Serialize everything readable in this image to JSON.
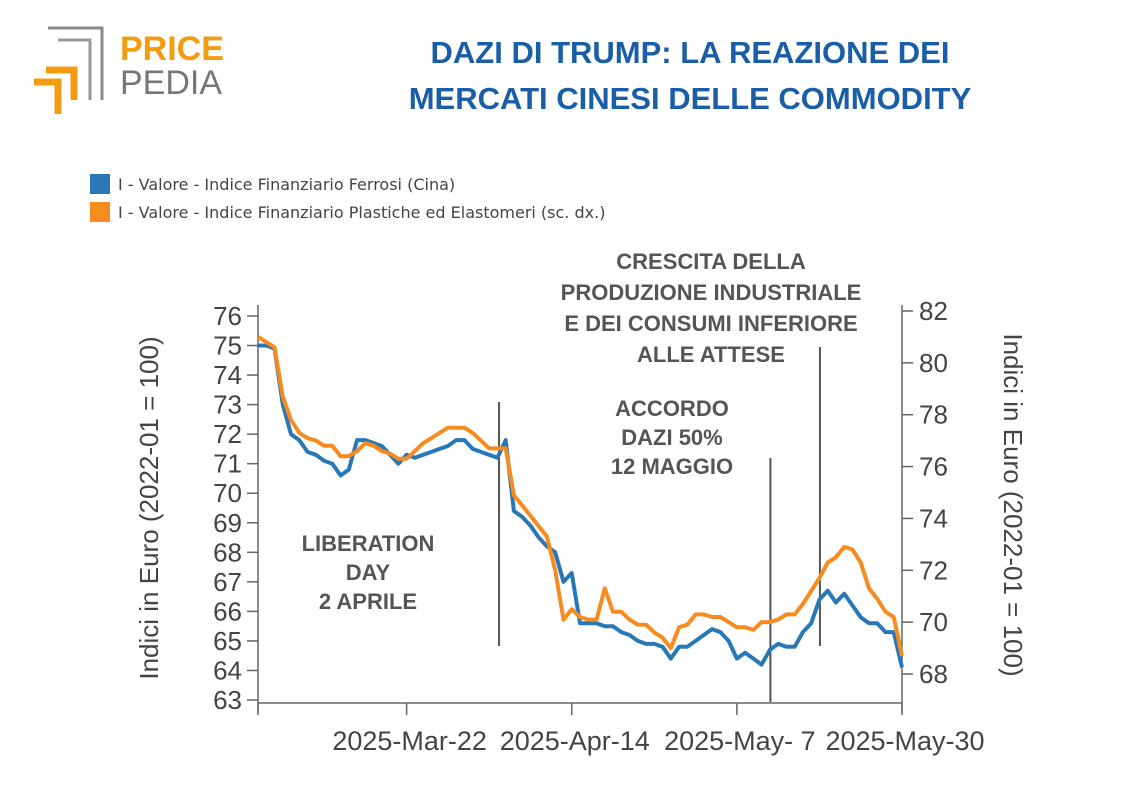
{
  "header": {
    "logo_word_top": "PRICE",
    "logo_word_bottom": "PEDIA",
    "title_line1": "DAZI DI TRUMP: LA REAZIONE DEI",
    "title_line2": "MERCATI CINESI DELLE COMMODITY"
  },
  "colors": {
    "blue_series": "#2878b8",
    "orange_series": "#f68c1f",
    "title": "#1a5ea8",
    "annotation": "#555555",
    "logo_orange": "#f39c12",
    "logo_gray": "#777777"
  },
  "chart_data": {
    "type": "line",
    "legend": [
      "I - Valore - Indice Finanziario Ferrosi (Cina)",
      "I - Valore - Indice Finanziario Plastiche ed Elastomeri (sc. dx.)"
    ],
    "ylabel_left": "Indici in Euro (2022-01 = 100)",
    "ylabel_right": "Indici in Euro (2022-01 = 100)",
    "ylim_left": [
      63,
      76
    ],
    "ylim_right": [
      67,
      82
    ],
    "yticks_left": [
      "63",
      "64",
      "65",
      "66",
      "67",
      "68",
      "69",
      "70",
      "71",
      "72",
      "73",
      "74",
      "75",
      "76"
    ],
    "yticks_right": [
      "68",
      "70",
      "72",
      "74",
      "76",
      "78",
      "80",
      "82"
    ],
    "xticks": [
      "2025-Mar-22",
      "2025-Apr-14",
      "2025-May- 7",
      "2025-May-30"
    ],
    "x_index_range": [
      0,
      78
    ],
    "xtick_index": [
      18,
      38,
      58,
      78
    ],
    "series": [
      {
        "name": "I - Valore - Indice Finanziario Ferrosi (Cina)",
        "axis": "left",
        "values": [
          75.0,
          75.0,
          74.9,
          73.0,
          72.0,
          71.8,
          71.4,
          71.3,
          71.1,
          71.0,
          70.6,
          70.8,
          71.8,
          71.8,
          71.7,
          71.6,
          71.3,
          71.0,
          71.3,
          71.2,
          71.3,
          71.4,
          71.5,
          71.6,
          71.8,
          71.8,
          71.5,
          71.4,
          71.3,
          71.2,
          71.8,
          69.4,
          69.2,
          68.9,
          68.5,
          68.2,
          68.0,
          67.0,
          67.3,
          65.6,
          65.6,
          65.6,
          65.5,
          65.5,
          65.3,
          65.2,
          65.0,
          64.9,
          64.9,
          64.8,
          64.4,
          64.8,
          64.8,
          65.0,
          65.2,
          65.4,
          65.3,
          65.0,
          64.4,
          64.6,
          64.4,
          64.2,
          64.7,
          64.9,
          64.8,
          64.8,
          65.3,
          65.6,
          66.4,
          66.7,
          66.3,
          66.6,
          66.2,
          65.8,
          65.6,
          65.6,
          65.3,
          65.3,
          64.1
        ]
      },
      {
        "name": "I - Valore - Indice Finanziario Plastiche ed Elastomeri (sc. dx.)",
        "axis": "right",
        "values": [
          81.0,
          80.8,
          80.6,
          78.7,
          77.8,
          77.3,
          77.1,
          77.0,
          76.8,
          76.8,
          76.4,
          76.4,
          76.6,
          76.9,
          76.8,
          76.6,
          76.5,
          76.3,
          76.3,
          76.6,
          76.9,
          77.1,
          77.3,
          77.5,
          77.5,
          77.5,
          77.3,
          77.0,
          76.7,
          76.7,
          76.7,
          74.9,
          74.5,
          74.1,
          73.7,
          73.3,
          72.0,
          70.1,
          70.5,
          70.2,
          70.1,
          70.1,
          71.3,
          70.4,
          70.4,
          70.1,
          69.9,
          69.9,
          69.6,
          69.4,
          69.0,
          69.8,
          69.9,
          70.3,
          70.3,
          70.2,
          70.2,
          70.0,
          69.8,
          69.8,
          69.7,
          70.0,
          70.0,
          70.1,
          70.3,
          70.3,
          70.7,
          71.2,
          71.7,
          72.3,
          72.5,
          72.9,
          72.8,
          72.3,
          71.3,
          70.9,
          70.4,
          70.2,
          68.7
        ]
      }
    ],
    "vlines_index": [
      29,
      62,
      68
    ],
    "annotations": [
      {
        "lines": [
          "LIBERATION",
          "DAY",
          "2 APRILE"
        ]
      },
      {
        "lines": [
          "ACCORDO",
          "DAZI 50%",
          "12 MAGGIO"
        ]
      },
      {
        "lines": [
          "CRESCITA DELLA",
          "PRODUZIONE INDUSTRIALE",
          "E DEI CONSUMI INFERIORE",
          "ALLE ATTESE"
        ]
      }
    ]
  }
}
